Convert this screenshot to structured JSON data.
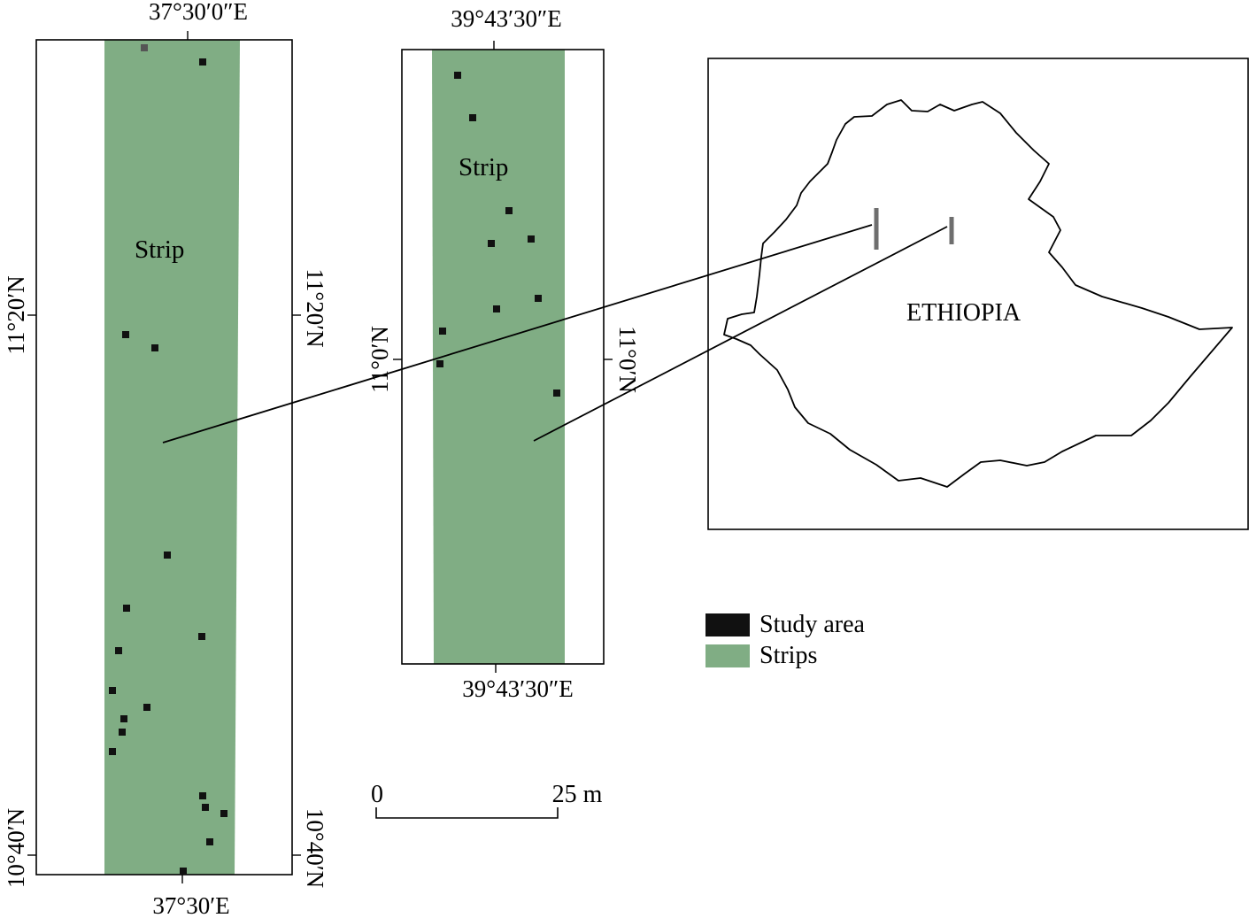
{
  "colors": {
    "strip": "#80ad84",
    "study_area": "#111111",
    "frame": "#000000",
    "site_marker": "#6e6e6e"
  },
  "panel_left": {
    "top_longitude": "37°30′0″E",
    "bottom_longitude": "37°30′E",
    "upper_latitude_left": "11°20′N",
    "upper_latitude_right": "11°20′N",
    "lower_latitude_left": "10°40′N",
    "lower_latitude_right": "10°40′N",
    "strip_label": "Strip"
  },
  "panel_middle": {
    "top_longitude": "39°43′30″E",
    "bottom_longitude": "39°43′30″E",
    "latitude_left": "11°0′N",
    "latitude_right": "11°0′N",
    "strip_label": "Strip"
  },
  "inset": {
    "country_label": "ETHIOPIA"
  },
  "legend": {
    "items": [
      {
        "label": "Study area",
        "swatch": "study-area"
      },
      {
        "label": "Strips",
        "swatch": "strips"
      }
    ]
  },
  "scale_bar": {
    "start_label": "0",
    "end_label": "25 m"
  }
}
